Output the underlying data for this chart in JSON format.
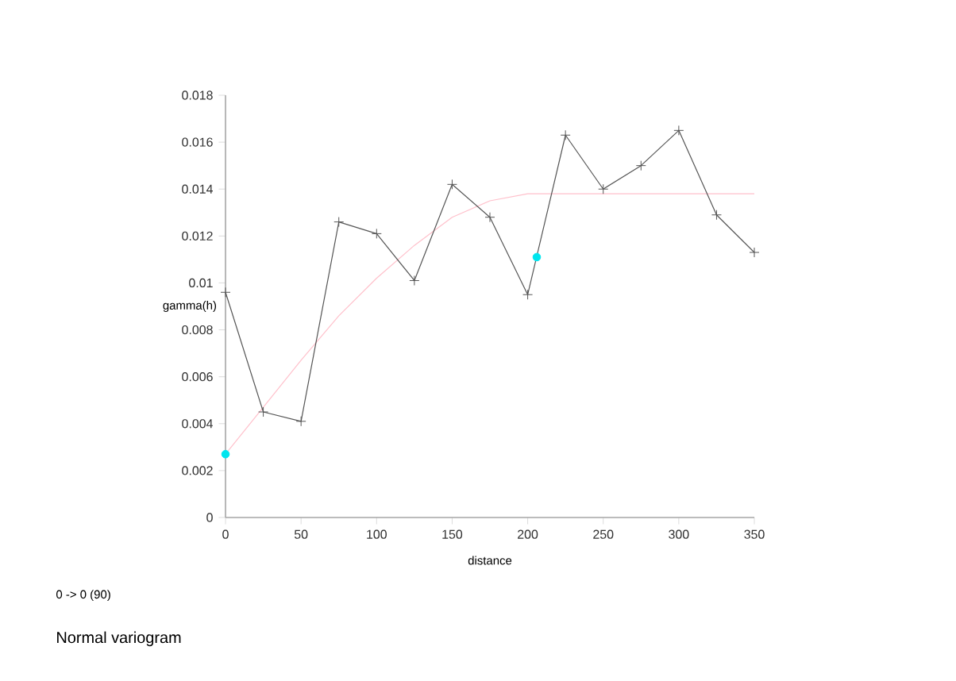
{
  "chart_data": {
    "type": "line",
    "xlabel": "distance",
    "ylabel": "gamma(h)",
    "annotations": [
      "0 -> 0 (90)",
      "Normal variogram"
    ],
    "xlim": [
      0,
      350
    ],
    "xticks": [
      0,
      50,
      100,
      150,
      200,
      250,
      300,
      350
    ],
    "ylim": [
      0,
      0.018
    ],
    "yticks": [
      0,
      0.002,
      0.004,
      0.006,
      0.008,
      0.01,
      0.012,
      0.014,
      0.016,
      0.018
    ],
    "grid": false,
    "series": [
      {
        "color": "#ffc0cb",
        "marker": "none",
        "x": [
          0,
          25,
          50,
          75,
          100,
          125,
          150,
          175,
          200,
          210,
          350
        ],
        "values": [
          0.0027,
          0.0047,
          0.0067,
          0.0086,
          0.0102,
          0.0116,
          0.0128,
          0.0135,
          0.0138,
          0.0138,
          0.0138
        ]
      },
      {
        "color": "#555555",
        "marker": "cross",
        "x": [
          0,
          25,
          50,
          75,
          100,
          125,
          150,
          175,
          200,
          225,
          250,
          275,
          300,
          325,
          350
        ],
        "values": [
          0.0096,
          0.0045,
          0.0041,
          0.0126,
          0.0121,
          0.0101,
          0.0142,
          0.0128,
          0.0095,
          0.0163,
          0.014,
          0.015,
          0.0165,
          0.0129,
          0.0113
        ]
      },
      {
        "type": "scatter",
        "color": "#00e5ee",
        "marker": "circle",
        "x": [
          0,
          206
        ],
        "values": [
          0.0027,
          0.0111
        ]
      }
    ]
  }
}
